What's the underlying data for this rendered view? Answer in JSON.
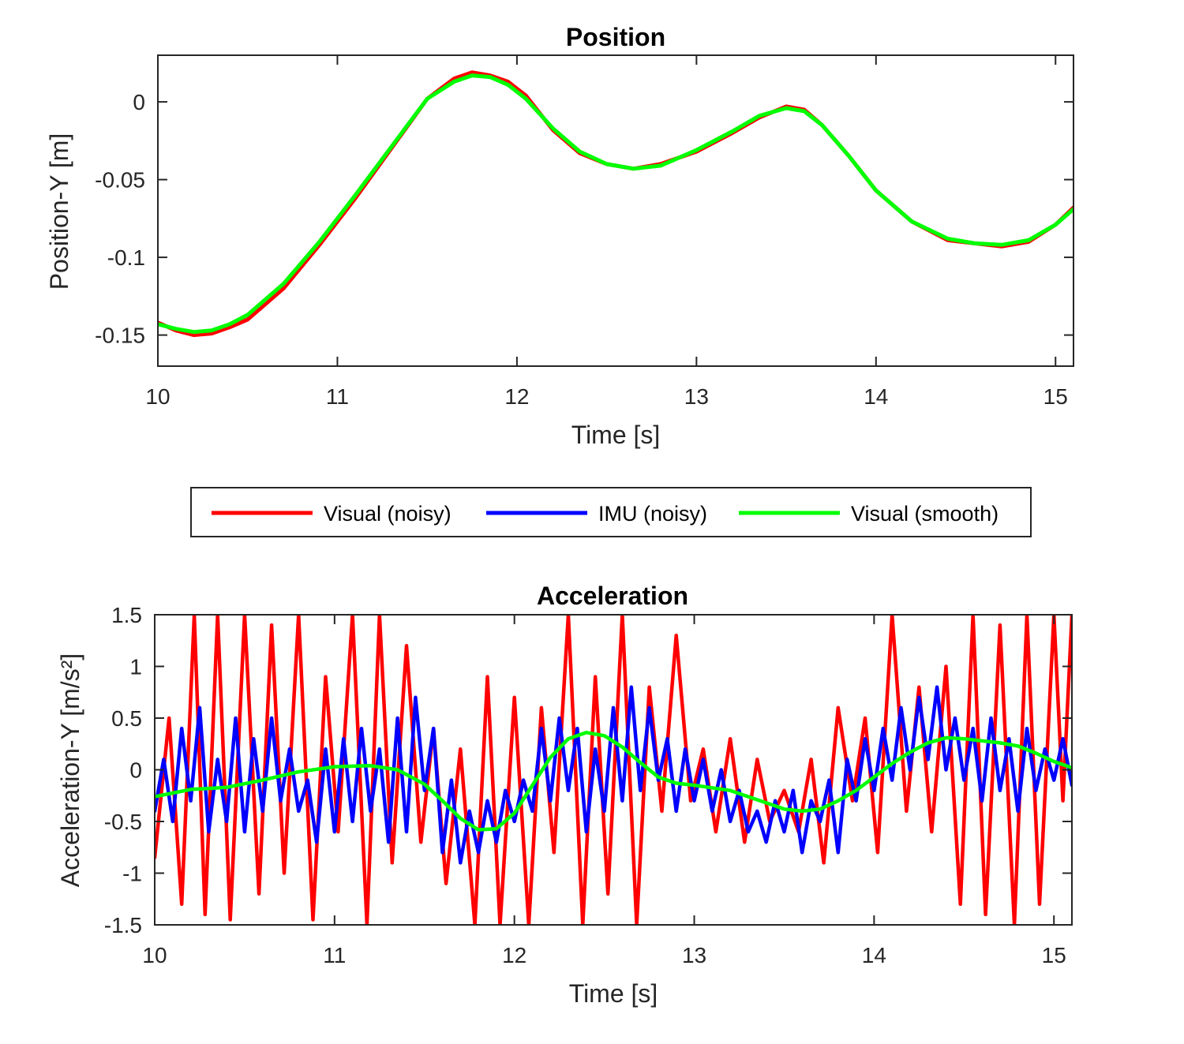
{
  "colors": {
    "visual_noisy": "#ff0000",
    "imu_noisy": "#0000ff",
    "visual_smooth": "#00ff00",
    "axes": "#262626"
  },
  "legend": {
    "items": [
      {
        "label": "Visual (noisy)",
        "color": "#ff0000"
      },
      {
        "label": "IMU (noisy)",
        "color": "#0000ff"
      },
      {
        "label": "Visual (smooth)",
        "color": "#00ff00"
      }
    ]
  },
  "chart_data": [
    {
      "type": "line",
      "title": "Position",
      "xlabel": "Time [s]",
      "ylabel": "Position-Y [m]",
      "xlim": [
        10,
        15.1
      ],
      "ylim": [
        -0.17,
        0.03
      ],
      "xticks": [
        10,
        11,
        12,
        13,
        14,
        15
      ],
      "xtick_labels": [
        "10",
        "11",
        "12",
        "13",
        "14",
        "15"
      ],
      "yticks": [
        -0.15,
        -0.1,
        -0.05,
        0
      ],
      "ytick_labels": [
        "-0.15",
        "-0.1",
        "-0.05",
        "0"
      ],
      "grid": false,
      "series": [
        {
          "name": "Visual (noisy)",
          "color": "#ff0000",
          "x": [
            10.0,
            10.1,
            10.2,
            10.3,
            10.4,
            10.5,
            10.7,
            10.9,
            11.1,
            11.3,
            11.5,
            11.65,
            11.75,
            11.85,
            11.95,
            12.05,
            12.2,
            12.35,
            12.5,
            12.65,
            12.8,
            13.0,
            13.2,
            13.35,
            13.5,
            13.6,
            13.7,
            13.85,
            14.0,
            14.2,
            14.4,
            14.55,
            14.7,
            14.85,
            15.0,
            15.1
          ],
          "y": [
            -0.142,
            -0.147,
            -0.15,
            -0.149,
            -0.145,
            -0.14,
            -0.12,
            -0.092,
            -0.062,
            -0.03,
            0.002,
            0.015,
            0.019,
            0.017,
            0.013,
            0.004,
            -0.018,
            -0.033,
            -0.04,
            -0.043,
            -0.04,
            -0.032,
            -0.02,
            -0.01,
            -0.003,
            -0.005,
            -0.015,
            -0.035,
            -0.057,
            -0.077,
            -0.089,
            -0.091,
            -0.093,
            -0.09,
            -0.079,
            -0.068
          ]
        },
        {
          "name": "Visual (smooth)",
          "color": "#00ff00",
          "x": [
            10.0,
            10.1,
            10.2,
            10.3,
            10.4,
            10.5,
            10.7,
            10.9,
            11.1,
            11.3,
            11.5,
            11.65,
            11.75,
            11.85,
            11.95,
            12.05,
            12.2,
            12.35,
            12.5,
            12.65,
            12.8,
            13.0,
            13.2,
            13.35,
            13.5,
            13.6,
            13.7,
            13.85,
            14.0,
            14.2,
            14.4,
            14.55,
            14.7,
            14.85,
            15.0,
            15.1
          ],
          "y": [
            -0.143,
            -0.146,
            -0.148,
            -0.147,
            -0.143,
            -0.137,
            -0.117,
            -0.09,
            -0.06,
            -0.029,
            0.002,
            0.013,
            0.017,
            0.016,
            0.011,
            0.002,
            -0.017,
            -0.032,
            -0.04,
            -0.043,
            -0.041,
            -0.031,
            -0.019,
            -0.009,
            -0.004,
            -0.006,
            -0.015,
            -0.035,
            -0.057,
            -0.077,
            -0.088,
            -0.091,
            -0.092,
            -0.089,
            -0.079,
            -0.069
          ]
        }
      ]
    },
    {
      "type": "line",
      "title": "Acceleration",
      "xlabel": "Time [s]",
      "ylabel": "Acceleration-Y [m/s²]",
      "xlim": [
        10,
        15.1
      ],
      "ylim": [
        -1.5,
        1.5
      ],
      "xticks": [
        10,
        11,
        12,
        13,
        14,
        15
      ],
      "xtick_labels": [
        "10",
        "11",
        "12",
        "13",
        "14",
        "15"
      ],
      "yticks": [
        -1.5,
        -1,
        -0.5,
        0,
        0.5,
        1,
        1.5
      ],
      "ytick_labels": [
        "-1.5",
        "-1",
        "-0.5",
        "0",
        "0.5",
        "1",
        "1.5"
      ],
      "grid": false,
      "series": [
        {
          "name": "Visual (noisy)",
          "color": "#ff0000",
          "x": [
            10.0,
            10.08,
            10.15,
            10.22,
            10.28,
            10.35,
            10.42,
            10.5,
            10.58,
            10.65,
            10.72,
            10.8,
            10.88,
            10.95,
            11.02,
            11.1,
            11.18,
            11.25,
            11.32,
            11.4,
            11.48,
            11.55,
            11.62,
            11.7,
            11.78,
            11.85,
            11.92,
            12.0,
            12.08,
            12.15,
            12.22,
            12.3,
            12.38,
            12.45,
            12.52,
            12.6,
            12.68,
            12.75,
            12.82,
            12.9,
            12.98,
            13.05,
            13.12,
            13.2,
            13.28,
            13.35,
            13.42,
            13.5,
            13.58,
            13.65,
            13.72,
            13.8,
            13.88,
            13.95,
            14.02,
            14.1,
            14.18,
            14.25,
            14.32,
            14.4,
            14.48,
            14.55,
            14.62,
            14.7,
            14.78,
            14.85,
            14.92,
            15.0,
            15.05,
            15.1
          ],
          "y": [
            -0.85,
            0.5,
            -1.3,
            1.5,
            -1.4,
            1.5,
            -1.45,
            1.5,
            -1.2,
            1.4,
            -1.0,
            1.5,
            -1.45,
            0.9,
            -0.6,
            1.5,
            -1.5,
            1.5,
            -0.9,
            1.2,
            -0.7,
            0.4,
            -1.1,
            0.2,
            -1.5,
            0.9,
            -1.5,
            0.7,
            -1.5,
            0.6,
            -0.8,
            1.5,
            -1.5,
            0.9,
            -1.2,
            1.5,
            -1.5,
            0.8,
            -0.4,
            1.3,
            -0.3,
            0.2,
            -0.6,
            0.3,
            -0.7,
            0.1,
            -0.5,
            -0.2,
            -0.6,
            0.1,
            -0.9,
            0.6,
            -0.3,
            0.5,
            -0.8,
            1.5,
            -0.4,
            0.8,
            -0.6,
            1.0,
            -1.3,
            1.5,
            -1.4,
            1.4,
            -1.5,
            1.5,
            -1.3,
            1.5,
            -0.3,
            1.5
          ]
        },
        {
          "name": "IMU (noisy)",
          "color": "#0000ff",
          "x": [
            10.0,
            10.05,
            10.1,
            10.15,
            10.2,
            10.25,
            10.3,
            10.35,
            10.4,
            10.45,
            10.5,
            10.55,
            10.6,
            10.65,
            10.7,
            10.75,
            10.8,
            10.85,
            10.9,
            10.95,
            11.0,
            11.05,
            11.1,
            11.15,
            11.2,
            11.25,
            11.3,
            11.35,
            11.4,
            11.45,
            11.5,
            11.55,
            11.6,
            11.65,
            11.7,
            11.75,
            11.8,
            11.85,
            11.9,
            11.95,
            12.0,
            12.05,
            12.1,
            12.15,
            12.2,
            12.25,
            12.3,
            12.35,
            12.4,
            12.45,
            12.5,
            12.55,
            12.6,
            12.65,
            12.7,
            12.75,
            12.8,
            12.85,
            12.9,
            12.95,
            13.0,
            13.05,
            13.1,
            13.15,
            13.2,
            13.25,
            13.3,
            13.35,
            13.4,
            13.45,
            13.5,
            13.55,
            13.6,
            13.65,
            13.7,
            13.75,
            13.8,
            13.85,
            13.9,
            13.95,
            14.0,
            14.05,
            14.1,
            14.15,
            14.2,
            14.25,
            14.3,
            14.35,
            14.4,
            14.45,
            14.5,
            14.55,
            14.6,
            14.65,
            14.7,
            14.75,
            14.8,
            14.85,
            14.9,
            14.95,
            15.0,
            15.05,
            15.1
          ],
          "y": [
            -0.4,
            0.1,
            -0.5,
            0.4,
            -0.3,
            0.6,
            -0.6,
            0.1,
            -0.5,
            0.5,
            -0.6,
            0.3,
            -0.4,
            0.5,
            -0.3,
            0.2,
            -0.4,
            -0.1,
            -0.7,
            0.2,
            -0.6,
            0.3,
            -0.5,
            0.4,
            -0.4,
            0.2,
            -0.7,
            0.5,
            -0.6,
            0.7,
            -0.2,
            0.4,
            -0.8,
            -0.1,
            -0.9,
            -0.4,
            -0.8,
            -0.3,
            -0.7,
            -0.2,
            -0.5,
            -0.1,
            -0.4,
            0.4,
            -0.3,
            0.5,
            -0.2,
            0.4,
            -0.6,
            0.2,
            -0.4,
            0.6,
            -0.3,
            0.8,
            -0.2,
            0.6,
            -0.1,
            0.3,
            -0.4,
            0.2,
            -0.3,
            0.1,
            -0.4,
            0.0,
            -0.5,
            -0.2,
            -0.6,
            -0.4,
            -0.7,
            -0.3,
            -0.6,
            -0.2,
            -0.8,
            -0.3,
            -0.5,
            -0.1,
            -0.8,
            0.1,
            -0.3,
            0.3,
            -0.2,
            0.4,
            -0.1,
            0.6,
            0.0,
            0.7,
            0.1,
            0.8,
            0.0,
            0.5,
            -0.1,
            0.4,
            -0.3,
            0.5,
            -0.2,
            0.3,
            -0.4,
            0.4,
            -0.2,
            0.2,
            -0.1,
            0.3,
            -0.15
          ]
        },
        {
          "name": "Visual (smooth)",
          "color": "#00ff00",
          "x": [
            10.0,
            10.2,
            10.4,
            10.6,
            10.8,
            11.0,
            11.2,
            11.35,
            11.5,
            11.6,
            11.7,
            11.8,
            11.9,
            12.0,
            12.1,
            12.2,
            12.3,
            12.4,
            12.5,
            12.6,
            12.7,
            12.8,
            12.9,
            13.0,
            13.2,
            13.4,
            13.5,
            13.6,
            13.7,
            13.8,
            13.9,
            14.0,
            14.1,
            14.2,
            14.3,
            14.4,
            14.5,
            14.6,
            14.7,
            14.8,
            14.9,
            15.0,
            15.1
          ],
          "y": [
            -0.26,
            -0.19,
            -0.17,
            -0.1,
            -0.02,
            0.03,
            0.04,
            0.0,
            -0.14,
            -0.3,
            -0.47,
            -0.58,
            -0.57,
            -0.42,
            -0.15,
            0.12,
            0.3,
            0.36,
            0.33,
            0.22,
            0.07,
            -0.07,
            -0.13,
            -0.15,
            -0.2,
            -0.32,
            -0.38,
            -0.4,
            -0.38,
            -0.3,
            -0.2,
            -0.07,
            0.06,
            0.17,
            0.26,
            0.31,
            0.3,
            0.28,
            0.26,
            0.23,
            0.16,
            0.08,
            0.02
          ]
        }
      ]
    }
  ]
}
